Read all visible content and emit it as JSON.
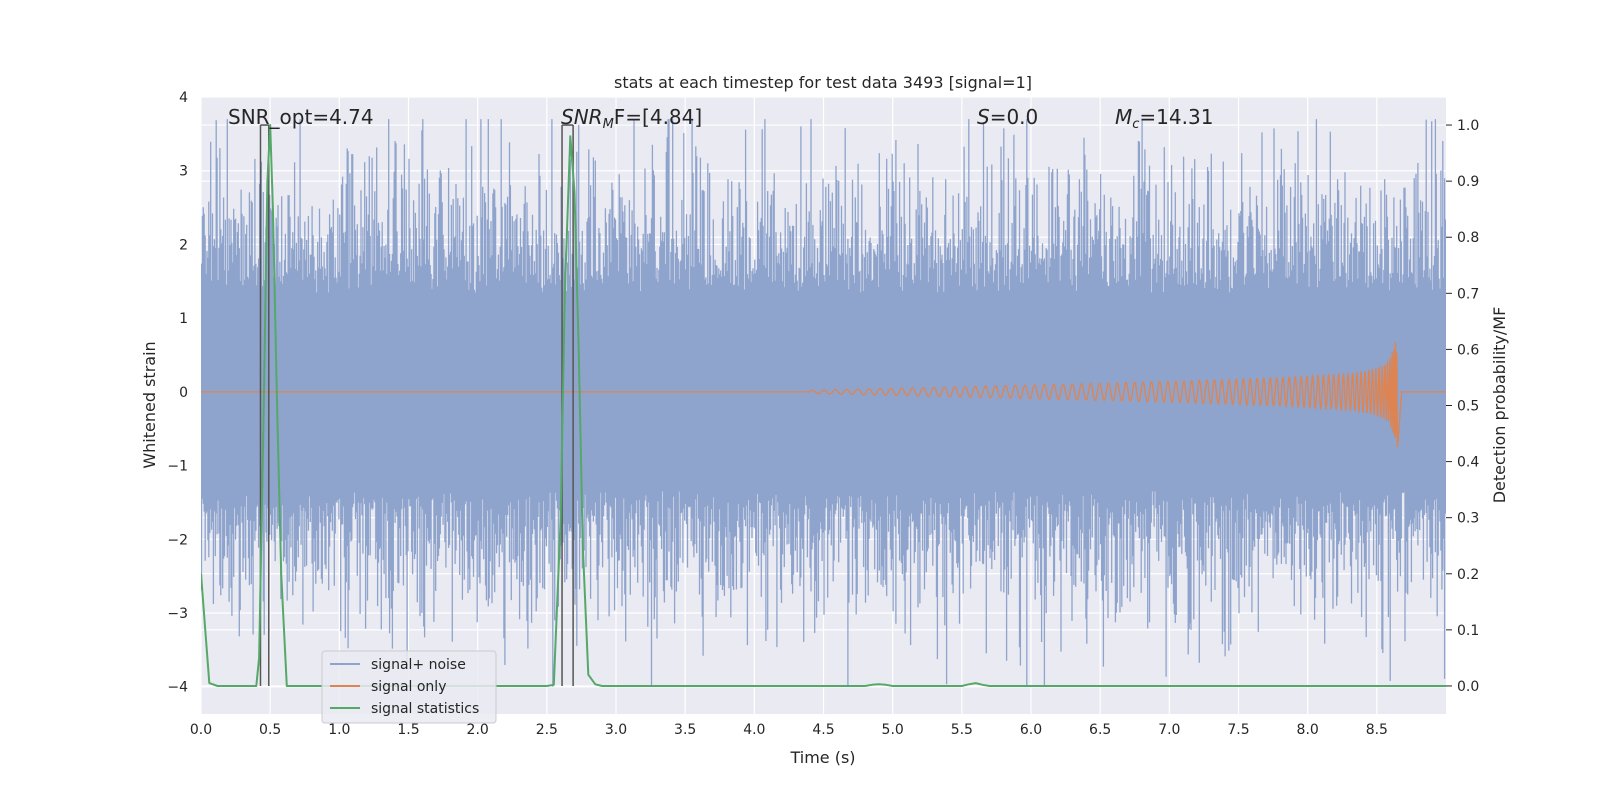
{
  "chart_data": {
    "type": "line",
    "title": "stats at each timestep for test data 3493 [signal=1]",
    "xlabel": "Time (s)",
    "ylabel_left": "Whitened strain",
    "ylabel_right": "Detection probability/MF",
    "xlim": [
      0.0,
      9.0
    ],
    "ylim_left": [
      -4.37,
      4.0
    ],
    "ylim_right": [
      -0.05,
      1.05
    ],
    "xticks": [
      "0.0",
      "0.5",
      "1.0",
      "1.5",
      "2.0",
      "2.5",
      "3.0",
      "3.5",
      "4.0",
      "4.5",
      "5.0",
      "5.5",
      "6.0",
      "6.5",
      "7.0",
      "7.5",
      "8.0",
      "8.5"
    ],
    "yticks_left": [
      "4",
      "3",
      "2",
      "1",
      "0",
      "−1",
      "−2",
      "−3",
      "−4"
    ],
    "yticks_right": [
      "1.0",
      "0.9",
      "0.8",
      "0.7",
      "0.6",
      "0.5",
      "0.4",
      "0.3",
      "0.2",
      "0.1",
      "0.0"
    ],
    "grid": true,
    "legend_position": "lower-left",
    "annotations": {
      "snr_opt": "SNR_opt=4.74",
      "snr_mf_prefix": "SNR",
      "snr_mf_sub": "M",
      "snr_mf_suffix": "F=[4.84]",
      "s_prefix": "S",
      "s_suffix": "=0.0",
      "mc_prefix": "M",
      "mc_sub": "c",
      "mc_suffix": "=14.31"
    },
    "series": [
      {
        "name": "signal+ noise",
        "color": "#8fa4cc",
        "axis": "left",
        "description_values": "dense whitened noise, x 0.0-9.0 s, mostly within ±2, extremes 3.7 / -4.0"
      },
      {
        "name": "signal only",
        "color": "#dd8452",
        "axis": "left",
        "chirp": {
          "start": 4.4,
          "merger": 8.65,
          "peak_amplitude": 0.75
        }
      },
      {
        "name": "signal statistics",
        "color": "#55a868",
        "axis": "right",
        "x": [
          0.0,
          0.06,
          0.12,
          0.18,
          0.24,
          0.3,
          0.36,
          0.4,
          0.42,
          0.45,
          0.48,
          0.5,
          0.52,
          0.55,
          0.58,
          0.62,
          0.7,
          0.8,
          1.0,
          1.5,
          2.0,
          2.3,
          2.5,
          2.55,
          2.6,
          2.63,
          2.67,
          2.7,
          2.73,
          2.76,
          2.8,
          2.85,
          2.9,
          3.0,
          4.0,
          4.8,
          4.85,
          4.9,
          4.95,
          5.0,
          5.5,
          5.55,
          5.6,
          5.65,
          5.7,
          6.0,
          7.0,
          8.0,
          9.0
        ],
        "values": [
          0.2,
          0.005,
          0.0,
          0.0,
          0.0,
          0.0,
          0.0,
          0.0,
          0.05,
          0.45,
          0.9,
          1.0,
          0.85,
          0.5,
          0.2,
          0.0,
          0.0,
          0.0,
          0.0,
          0.0,
          0.0,
          0.0,
          0.0,
          0.002,
          0.3,
          0.7,
          0.98,
          0.88,
          0.6,
          0.25,
          0.02,
          0.003,
          0.0,
          0.0,
          0.0,
          0.0,
          0.002,
          0.003,
          0.002,
          0.0,
          0.0,
          0.003,
          0.005,
          0.002,
          0.0,
          0.0,
          0.0,
          0.0,
          0.0
        ]
      }
    ],
    "vertical_markers": {
      "color": "#555555",
      "x": [
        0.43,
        0.49,
        2.61,
        2.69
      ]
    }
  },
  "legend": {
    "items": [
      {
        "label": "signal+ noise",
        "color": "#8fa4cc"
      },
      {
        "label": "signal only",
        "color": "#dd8452"
      },
      {
        "label": "signal statistics",
        "color": "#55a868"
      }
    ]
  },
  "colors": {
    "plot_background": "#eaeaf2",
    "grid": "#ffffff",
    "text": "#262626"
  }
}
